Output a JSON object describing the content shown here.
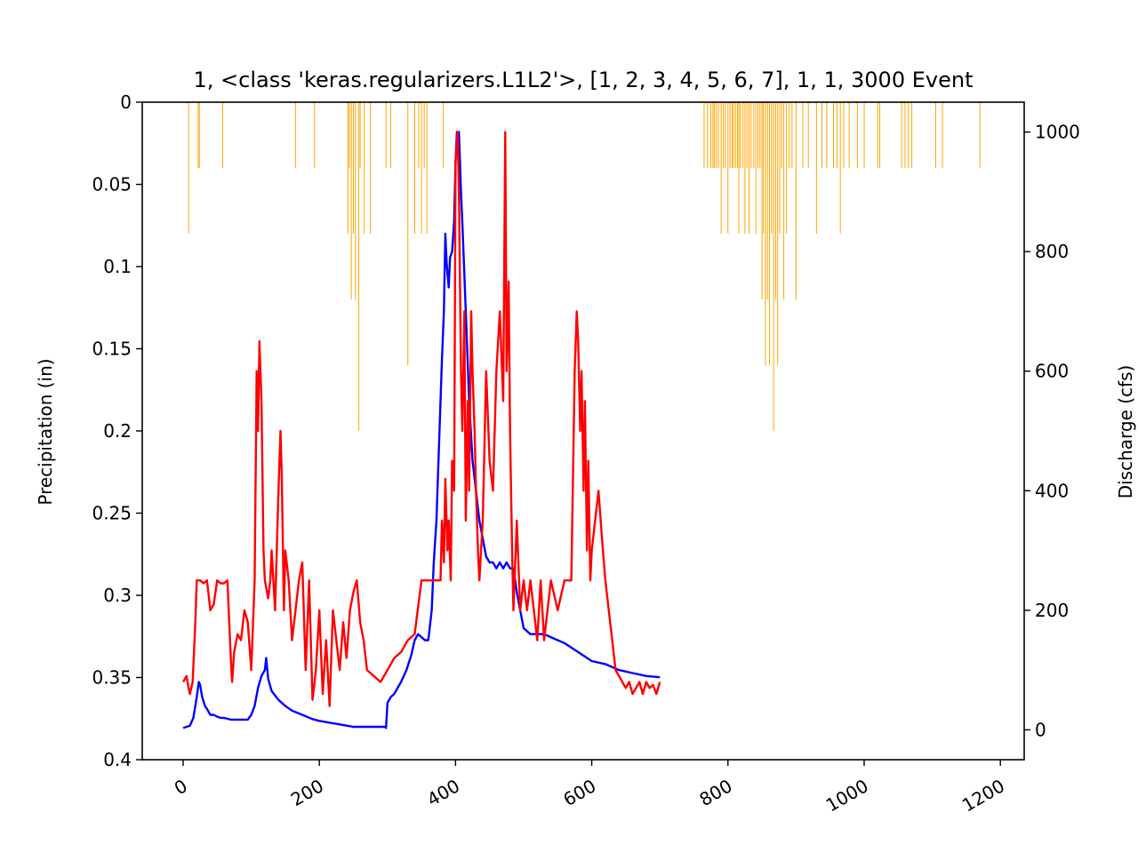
{
  "chart_data": {
    "type": "line",
    "title": "1, <class 'keras.regularizers.L1L2'>, [1, 2, 3, 4, 5, 6, 7], 1, 1, 3000 Event",
    "xlabel": "",
    "ylabel_left": "Precipitation (in)",
    "ylabel_right": "Discharge (cfs)",
    "xlim": [
      -60,
      1235
    ],
    "ylim_left": [
      0.4,
      0
    ],
    "ylim_right": [
      -50,
      1050
    ],
    "left_axis_inverted": true,
    "grid": false,
    "x_ticks": [
      0,
      200,
      400,
      600,
      800,
      1000,
      1200
    ],
    "x_tick_labels": [
      "0",
      "200",
      "400",
      "600",
      "800",
      "1000",
      "1200"
    ],
    "left_ticks": [
      0,
      0.05,
      0.1,
      0.15,
      0.2,
      0.25,
      0.3,
      0.35,
      0.4
    ],
    "left_tick_labels": [
      "0",
      "0.05",
      "0.1",
      "0.15",
      "0.2",
      "0.25",
      "0.3",
      "0.35",
      "0.4"
    ],
    "right_ticks": [
      0,
      200,
      400,
      600,
      800,
      1000
    ],
    "right_tick_labels": [
      "0",
      "200",
      "400",
      "600",
      "800",
      "1000"
    ],
    "colors": {
      "precipitation": "#ffa500",
      "observed": "#0000ff",
      "predicted": "#ff0000"
    },
    "precipitation": {
      "axis": "left",
      "x": [
        8,
        22,
        24,
        58,
        165,
        193,
        242,
        244,
        247,
        250,
        253,
        258,
        260,
        266,
        275,
        298,
        305,
        330,
        340,
        346,
        350,
        354,
        358,
        382,
        765,
        770,
        775,
        778,
        780,
        783,
        786,
        790,
        793,
        796,
        800,
        803,
        806,
        808,
        811,
        814,
        816,
        818,
        822,
        825,
        828,
        831,
        834,
        838,
        841,
        844,
        847,
        850,
        852,
        855,
        858,
        861,
        864,
        867,
        870,
        873,
        876,
        879,
        882,
        886,
        890,
        894,
        900,
        910,
        918,
        930,
        938,
        945,
        955,
        960,
        965,
        970,
        978,
        990,
        1000,
        1020,
        1023,
        1055,
        1060,
        1065,
        1070,
        1105,
        1115,
        1170
      ],
      "values": [
        0.08,
        0.04,
        0.04,
        0.04,
        0.04,
        0.04,
        0.08,
        0.04,
        0.12,
        0.08,
        0.12,
        0.2,
        0.04,
        0.08,
        0.08,
        0.04,
        0.04,
        0.16,
        0.08,
        0.04,
        0.08,
        0.04,
        0.08,
        0.04,
        0.04,
        0.04,
        0.04,
        0.04,
        0.04,
        0.04,
        0.04,
        0.08,
        0.04,
        0.04,
        0.08,
        0.04,
        0.04,
        0.04,
        0.04,
        0.04,
        0.08,
        0.04,
        0.04,
        0.08,
        0.04,
        0.08,
        0.04,
        0.04,
        0.08,
        0.04,
        0.04,
        0.12,
        0.08,
        0.16,
        0.12,
        0.16,
        0.08,
        0.2,
        0.12,
        0.16,
        0.08,
        0.04,
        0.12,
        0.08,
        0.04,
        0.04,
        0.12,
        0.04,
        0.04,
        0.08,
        0.04,
        0.04,
        0.04,
        0.04,
        0.08,
        0.04,
        0.04,
        0.04,
        0.04,
        0.04,
        0.04,
        0.04,
        0.04,
        0.04,
        0.04,
        0.04,
        0.04,
        0.04
      ]
    },
    "series": [
      {
        "axis": "right",
        "x": [
          0,
          10,
          15,
          20,
          23,
          25,
          28,
          32,
          35,
          40,
          45,
          50,
          55,
          60,
          70,
          80,
          90,
          95,
          100,
          105,
          110,
          115,
          120,
          122,
          125,
          130,
          140,
          150,
          160,
          175,
          190,
          200,
          250,
          297,
          298,
          300,
          305,
          310,
          320,
          328,
          335,
          340,
          345,
          350,
          355,
          360,
          362,
          365,
          368,
          372,
          375,
          378,
          380,
          383,
          385,
          387,
          390,
          392,
          395,
          398,
          400,
          402,
          405,
          408,
          410,
          415,
          420,
          425,
          430,
          435,
          440,
          445,
          450,
          455,
          460,
          465,
          470,
          475,
          480,
          485,
          490,
          495,
          500,
          510,
          520,
          530,
          540,
          560,
          580,
          600,
          620,
          640,
          660,
          680,
          700
        ],
        "values": [
          3,
          7,
          20,
          55,
          80,
          75,
          55,
          40,
          35,
          25,
          25,
          22,
          20,
          20,
          17,
          17,
          17,
          17,
          25,
          40,
          70,
          90,
          100,
          120,
          85,
          65,
          50,
          40,
          32,
          25,
          18,
          15,
          5,
          5,
          3,
          45,
          55,
          60,
          80,
          100,
          125,
          150,
          160,
          155,
          150,
          150,
          170,
          200,
          280,
          350,
          450,
          550,
          620,
          700,
          830,
          780,
          740,
          790,
          800,
          850,
          950,
          1000,
          1000,
          900,
          850,
          700,
          550,
          450,
          400,
          350,
          320,
          290,
          280,
          280,
          270,
          280,
          270,
          280,
          270,
          270,
          230,
          200,
          170,
          160,
          160,
          160,
          155,
          145,
          130,
          115,
          110,
          100,
          95,
          90,
          88
        ]
      },
      {
        "axis": "right",
        "x": [
          0,
          5,
          8,
          10,
          14,
          18,
          20,
          25,
          30,
          35,
          40,
          45,
          50,
          55,
          60,
          65,
          70,
          72,
          75,
          80,
          85,
          90,
          95,
          100,
          105,
          108,
          110,
          112,
          115,
          118,
          120,
          125,
          128,
          130,
          135,
          140,
          143,
          145,
          148,
          150,
          155,
          160,
          165,
          170,
          175,
          180,
          185,
          190,
          195,
          200,
          205,
          210,
          215,
          220,
          225,
          230,
          235,
          240,
          245,
          250,
          255,
          260,
          265,
          270,
          280,
          290,
          300,
          310,
          320,
          330,
          340,
          350,
          355,
          360,
          365,
          370,
          375,
          378,
          380,
          383,
          385,
          388,
          390,
          393,
          395,
          398,
          400,
          403,
          405,
          408,
          410,
          413,
          415,
          418,
          420,
          423,
          425,
          428,
          430,
          433,
          435,
          440,
          445,
          450,
          455,
          460,
          465,
          470,
          473,
          475,
          478,
          480,
          483,
          485,
          490,
          495,
          500,
          505,
          510,
          515,
          520,
          525,
          530,
          540,
          550,
          560,
          570,
          575,
          578,
          580,
          583,
          585,
          588,
          590,
          593,
          595,
          598,
          600,
          605,
          610,
          615,
          620,
          625,
          630,
          635,
          640,
          645,
          650,
          655,
          660,
          665,
          670,
          675,
          680,
          685,
          690,
          695,
          700
        ],
        "values": [
          80,
          90,
          70,
          60,
          80,
          180,
          250,
          250,
          245,
          250,
          200,
          210,
          250,
          245,
          245,
          250,
          120,
          80,
          130,
          160,
          150,
          200,
          180,
          100,
          250,
          600,
          500,
          650,
          550,
          300,
          250,
          220,
          250,
          300,
          200,
          400,
          500,
          420,
          200,
          300,
          250,
          150,
          200,
          250,
          280,
          100,
          250,
          50,
          100,
          200,
          60,
          150,
          40,
          200,
          150,
          100,
          180,
          120,
          200,
          230,
          250,
          180,
          150,
          100,
          90,
          80,
          100,
          120,
          130,
          150,
          160,
          250,
          250,
          250,
          250,
          250,
          250,
          250,
          350,
          280,
          420,
          300,
          350,
          250,
          450,
          400,
          950,
          1000,
          900,
          600,
          500,
          700,
          350,
          550,
          400,
          700,
          600,
          500,
          400,
          300,
          250,
          350,
          600,
          450,
          400,
          600,
          700,
          550,
          1000,
          600,
          750,
          500,
          300,
          200,
          350,
          200,
          250,
          200,
          250,
          200,
          150,
          250,
          150,
          250,
          200,
          250,
          250,
          600,
          700,
          650,
          500,
          600,
          400,
          550,
          300,
          450,
          250,
          300,
          350,
          400,
          320,
          250,
          200,
          150,
          100,
          90,
          80,
          70,
          80,
          60,
          70,
          80,
          60,
          80,
          70,
          75,
          60,
          80
        ]
      }
    ]
  }
}
